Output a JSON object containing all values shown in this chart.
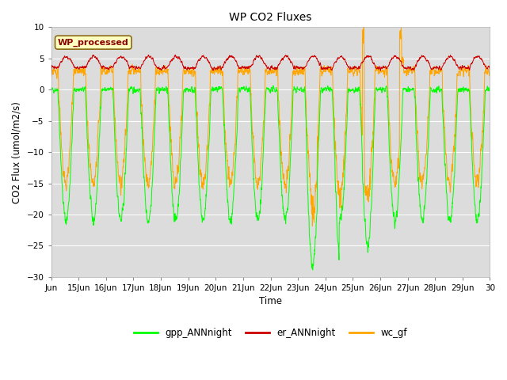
{
  "title": "WP CO2 Fluxes",
  "xlabel": "Time",
  "ylabel_display": "CO2 Flux (umol/m2/s)",
  "ylim": [
    -30,
    10
  ],
  "yticks": [
    -30,
    -25,
    -20,
    -15,
    -10,
    -5,
    0,
    5,
    10
  ],
  "xlim_start": 14.0,
  "xlim_end": 30.0,
  "xtick_labels": [
    "Jun",
    "15Jun",
    "16Jun",
    "17Jun",
    "18Jun",
    "19Jun",
    "20Jun",
    "21Jun",
    "22Jun",
    "23Jun",
    "24Jun",
    "25Jun",
    "26Jun",
    "27Jun",
    "28Jun",
    "29Jun",
    "30"
  ],
  "xtick_positions": [
    14,
    15,
    16,
    17,
    18,
    19,
    20,
    21,
    22,
    23,
    24,
    25,
    26,
    27,
    28,
    29,
    30
  ],
  "color_gpp": "#00FF00",
  "color_er": "#CC0000",
  "color_wc": "#FFA500",
  "legend_label_gpp": "gpp_ANNnight",
  "legend_label_er": "er_ANNnight",
  "legend_label_wc": "wc_gf",
  "annotation_text": "WP_processed",
  "background_color": "#DCDCDC",
  "fig_background": "#FFFFFF",
  "grid_color": "#FFFFFF",
  "n_points_per_day": 144,
  "seed": 42
}
